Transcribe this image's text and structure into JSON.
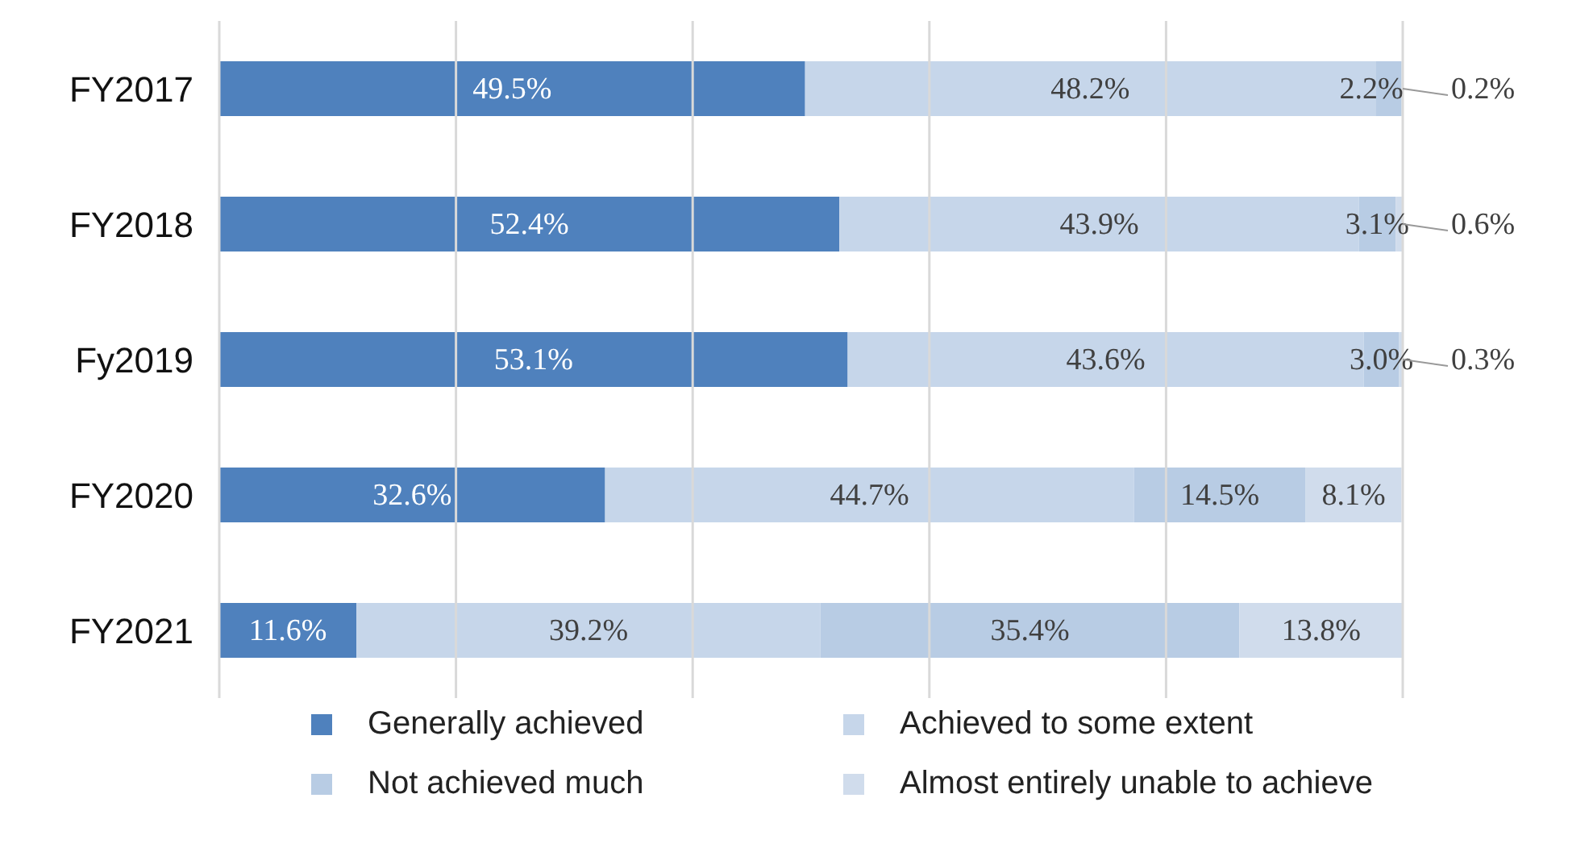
{
  "chart_data": {
    "type": "bar",
    "orientation": "horizontal",
    "stacked": true,
    "categories": [
      "FY2017",
      "FY2018",
      "Fy2019",
      "FY2020",
      "FY2021"
    ],
    "series": [
      {
        "name": "Generally achieved",
        "color": "#4f81bd",
        "values": [
          49.5,
          52.4,
          53.1,
          32.6,
          11.6
        ],
        "value_labels": [
          "49.5%",
          "52.4%",
          "53.1%",
          "32.6%",
          "11.6%"
        ]
      },
      {
        "name": "Achieved to some extent",
        "color": "#c6d6ea",
        "values": [
          48.2,
          43.9,
          43.6,
          44.7,
          39.2
        ],
        "value_labels": [
          "48.2%",
          "43.9%",
          "43.6%",
          "44.7%",
          "39.2%"
        ]
      },
      {
        "name": "Not achieved much",
        "color": "#b8cce4",
        "values": [
          2.2,
          3.1,
          3.0,
          14.5,
          35.4
        ],
        "value_labels": [
          "2.2%",
          "3.1%",
          "3.0%",
          "14.5%",
          "35.4%"
        ]
      },
      {
        "name": "Almost entirely unable to achieve",
        "color": "#d0dcec",
        "values": [
          0.2,
          0.6,
          0.3,
          8.1,
          13.8
        ],
        "value_labels": [
          "0.2%",
          "0.6%",
          "0.3%",
          "8.1%",
          "13.8%"
        ]
      }
    ],
    "xlim": [
      0,
      100
    ],
    "xticks": [
      {
        "value": 0,
        "label": null
      },
      {
        "value": 20,
        "label": null
      },
      {
        "value": 40,
        "label": null
      },
      {
        "value": 60,
        "label": null
      },
      {
        "value": 80,
        "label": null
      },
      {
        "value": 100,
        "label": null
      }
    ],
    "tick_labels": "y",
    "grid": "x",
    "legend": "bottom"
  }
}
